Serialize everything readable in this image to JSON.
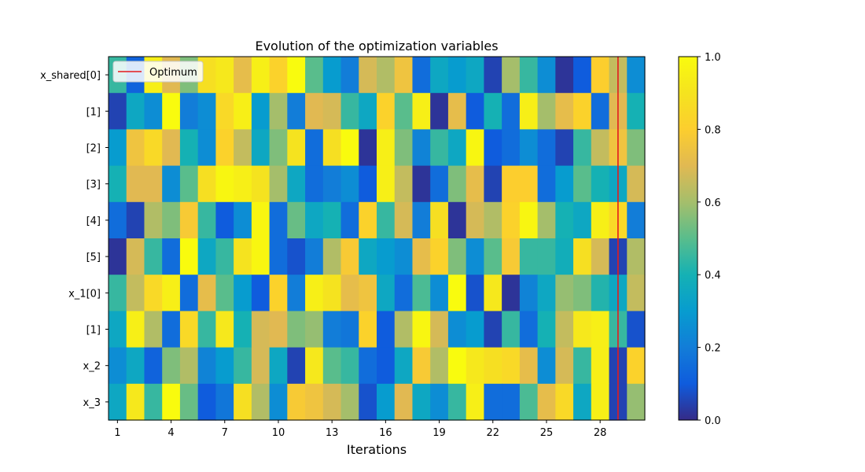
{
  "chart_data": {
    "type": "heatmap",
    "title": "Evolution of the optimization variables",
    "xlabel": "Iterations",
    "ylabel": "",
    "row_labels": [
      "x_shared[0]",
      "[1]",
      "[2]",
      "[3]",
      "[4]",
      "[5]",
      "x_1[0]",
      "[1]",
      "x_2",
      "x_3"
    ],
    "x_ticks": [
      1,
      4,
      7,
      10,
      13,
      16,
      19,
      22,
      25,
      28
    ],
    "x_range": [
      1,
      30
    ],
    "values": [
      [
        0.45,
        0.12,
        0.95,
        0.7,
        0.55,
        0.88,
        0.92,
        0.72,
        0.95,
        0.82,
        1.0,
        0.5,
        0.3,
        0.2,
        0.68,
        0.62,
        0.75,
        0.15,
        0.35,
        0.3,
        0.35,
        0.05,
        0.6,
        0.45,
        0.25,
        0.02,
        0.1,
        0.8,
        0.65,
        0.25
      ],
      [
        0.05,
        0.35,
        0.25,
        1.0,
        0.2,
        0.25,
        0.85,
        0.95,
        0.3,
        0.6,
        0.2,
        0.7,
        0.68,
        0.45,
        0.35,
        0.82,
        0.5,
        0.95,
        0.02,
        0.72,
        0.1,
        0.4,
        0.15,
        0.95,
        0.6,
        0.72,
        0.82,
        0.15,
        0.7,
        0.4
      ],
      [
        0.3,
        0.75,
        0.85,
        0.7,
        0.4,
        0.25,
        0.82,
        0.65,
        0.35,
        0.55,
        0.9,
        0.15,
        0.88,
        1.0,
        0.02,
        0.95,
        0.55,
        0.22,
        0.45,
        0.35,
        0.98,
        0.1,
        0.15,
        0.25,
        0.15,
        0.05,
        0.45,
        0.65,
        0.75,
        0.55
      ],
      [
        0.4,
        0.7,
        0.7,
        0.25,
        0.5,
        0.88,
        0.98,
        0.95,
        0.9,
        0.6,
        0.35,
        0.15,
        0.2,
        0.25,
        0.1,
        0.95,
        0.65,
        0.02,
        0.15,
        0.55,
        0.72,
        0.05,
        0.8,
        0.8,
        0.15,
        0.3,
        0.5,
        0.4,
        0.35,
        0.68
      ],
      [
        0.15,
        0.05,
        0.62,
        0.55,
        0.78,
        0.45,
        0.1,
        0.25,
        0.98,
        0.15,
        0.52,
        0.35,
        0.4,
        0.15,
        0.82,
        0.45,
        0.68,
        0.2,
        0.88,
        0.02,
        0.68,
        0.62,
        0.82,
        0.98,
        0.6,
        0.4,
        0.35,
        0.95,
        0.85,
        0.2
      ],
      [
        0.02,
        0.68,
        0.45,
        0.15,
        1.0,
        0.35,
        0.45,
        0.9,
        0.98,
        0.15,
        0.08,
        0.2,
        0.62,
        0.78,
        0.35,
        0.3,
        0.25,
        0.72,
        0.82,
        0.55,
        0.25,
        0.5,
        0.78,
        0.45,
        0.45,
        0.38,
        0.88,
        0.68,
        0.05,
        0.62
      ],
      [
        0.45,
        0.65,
        0.85,
        0.95,
        0.15,
        0.72,
        0.5,
        0.3,
        0.1,
        0.82,
        0.2,
        0.95,
        0.9,
        0.72,
        0.75,
        0.35,
        0.15,
        0.48,
        0.25,
        1.0,
        0.08,
        0.92,
        0.02,
        0.22,
        0.35,
        0.58,
        0.55,
        0.42,
        0.35,
        0.65
      ],
      [
        0.35,
        0.95,
        0.62,
        0.15,
        0.85,
        0.45,
        0.92,
        0.4,
        0.68,
        0.7,
        0.55,
        0.58,
        0.2,
        0.18,
        0.82,
        0.1,
        0.62,
        0.98,
        0.68,
        0.25,
        0.3,
        0.05,
        0.45,
        0.15,
        0.4,
        0.65,
        0.92,
        0.95,
        0.45,
        0.08
      ],
      [
        0.25,
        0.35,
        0.12,
        0.55,
        0.62,
        0.22,
        0.3,
        0.45,
        0.68,
        0.35,
        0.05,
        0.92,
        0.5,
        0.45,
        0.15,
        0.1,
        0.35,
        0.78,
        0.62,
        1.0,
        0.92,
        0.88,
        0.85,
        0.72,
        0.25,
        0.68,
        0.45,
        0.95,
        0.05,
        0.82
      ],
      [
        0.35,
        0.92,
        0.45,
        1.0,
        0.52,
        0.1,
        0.18,
        0.88,
        0.62,
        0.25,
        0.78,
        0.75,
        0.68,
        0.6,
        0.08,
        0.3,
        0.7,
        0.35,
        0.25,
        0.45,
        0.95,
        0.15,
        0.15,
        0.48,
        0.72,
        0.85,
        0.35,
        0.95,
        0.05,
        0.58
      ]
    ],
    "optimum_x": 29,
    "legend": {
      "label": "Optimum",
      "color": "#e41a1c",
      "placement": "top-left"
    },
    "colorbar": {
      "range": [
        0,
        1
      ],
      "ticks": [
        "0.0",
        "0.2",
        "0.4",
        "0.6",
        "0.8",
        "1.0"
      ]
    },
    "colormap": "parula",
    "grid": false
  }
}
